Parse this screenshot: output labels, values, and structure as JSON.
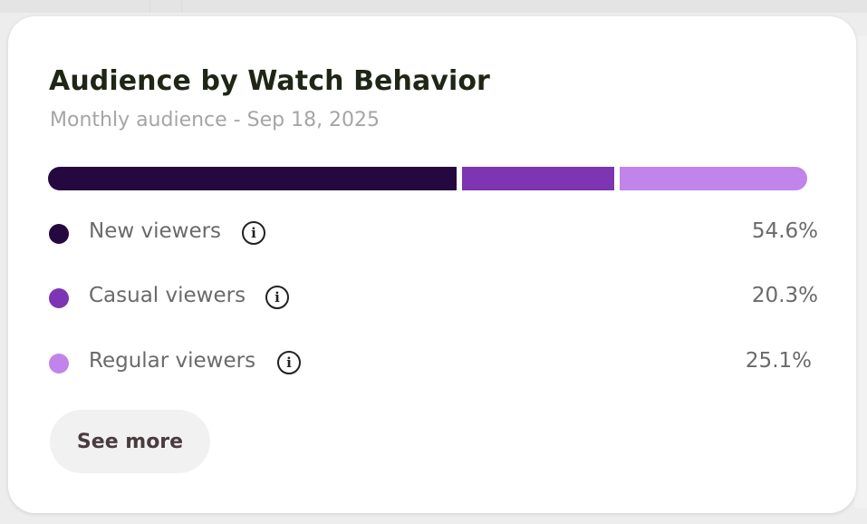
{
  "card": {
    "title": "Audience by Watch Behavior",
    "subtitle": "Monthly audience - Sep 18, 2025",
    "see_more_label": "See more",
    "info_glyph": "i"
  },
  "segments": [
    {
      "label": "New viewers",
      "value": "54.6%",
      "fraction": 0.546,
      "color": "#24083f",
      "icon": "info-icon"
    },
    {
      "label": "Casual viewers",
      "value": "20.3%",
      "fraction": 0.203,
      "color": "#7d35b3",
      "icon": "info-icon"
    },
    {
      "label": "Regular viewers",
      "value": "25.1%",
      "fraction": 0.251,
      "color": "#c084ea",
      "icon": "info-icon"
    }
  ]
}
